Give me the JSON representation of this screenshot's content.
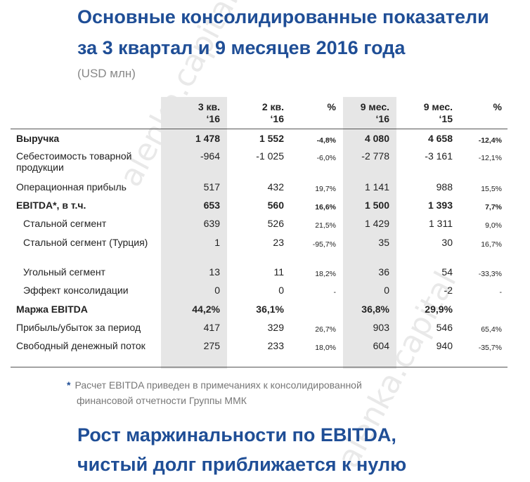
{
  "watermark": "alenka.capital",
  "title": {
    "line1": "Основные консолидированные показатели",
    "line2": "за 3 квартал и 9 месяцев 2016 года"
  },
  "unit": "(USD млн)",
  "table": {
    "columns": [
      {
        "line1": "3 кв.",
        "line2": "‘16"
      },
      {
        "line1": "2 кв.",
        "line2": "‘16"
      },
      {
        "line1": "%",
        "line2": ""
      },
      {
        "line1": "9 мес.",
        "line2": "‘16"
      },
      {
        "line1": "9 мес.",
        "line2": "‘15"
      },
      {
        "line1": "%",
        "line2": ""
      }
    ],
    "rows": [
      {
        "label": "Выручка",
        "bold": true,
        "values": [
          "1 478",
          "1 552",
          "-4,8%",
          "4 080",
          "4 658",
          "-12,4%"
        ]
      },
      {
        "label": "Себестоимость товарной продукции",
        "bold": false,
        "values": [
          "-964",
          "-1 025",
          "-6,0%",
          "-2 778",
          "-3 161",
          "-12,1%"
        ]
      },
      {
        "label": "Операционная прибыль",
        "bold": false,
        "values": [
          "517",
          "432",
          "19,7%",
          "1 141",
          "988",
          "15,5%"
        ]
      },
      {
        "label": "EBITDA*, в т.ч.",
        "bold": true,
        "values": [
          "653",
          "560",
          "16,6%",
          "1 500",
          "1 393",
          "7,7%"
        ]
      },
      {
        "label": "Стальной сегмент",
        "bold": false,
        "values": [
          "639",
          "526",
          "21,5%",
          "1 429",
          "1 311",
          "9,0%"
        ]
      },
      {
        "label": "Стальной сегмент (Турция)",
        "bold": false,
        "values": [
          "1",
          "23",
          "-95,7%",
          "35",
          "30",
          "16,7%"
        ]
      },
      {
        "label": "Угольный сегмент",
        "bold": false,
        "values": [
          "13",
          "11",
          "18,2%",
          "36",
          "54",
          "-33,3%"
        ]
      },
      {
        "label": "Эффект консолидации",
        "bold": false,
        "values": [
          "0",
          "0",
          "-",
          "0",
          "-2",
          "-"
        ]
      },
      {
        "label": "Маржа EBITDA",
        "bold": true,
        "values": [
          "44,2%",
          "36,1%",
          "",
          "36,8%",
          "29,9%",
          ""
        ]
      },
      {
        "label": "Прибыль/убыток за период",
        "bold": false,
        "values": [
          "417",
          "329",
          "26,7%",
          "903",
          "546",
          "65,4%"
        ]
      },
      {
        "label": "Свободный денежный поток",
        "bold": false,
        "values": [
          "275",
          "233",
          "18,0%",
          "604",
          "940",
          "-35,7%"
        ]
      }
    ]
  },
  "footnote": {
    "star": "*",
    "line1": "Расчет EBITDA приведен в примечаниях к консолидированной",
    "line2": "финансовой отчетности Группы ММК"
  },
  "subtitle": {
    "line1": "Рост маржинальности по EBITDA,",
    "line2": "чистый долг приближается к нулю"
  }
}
